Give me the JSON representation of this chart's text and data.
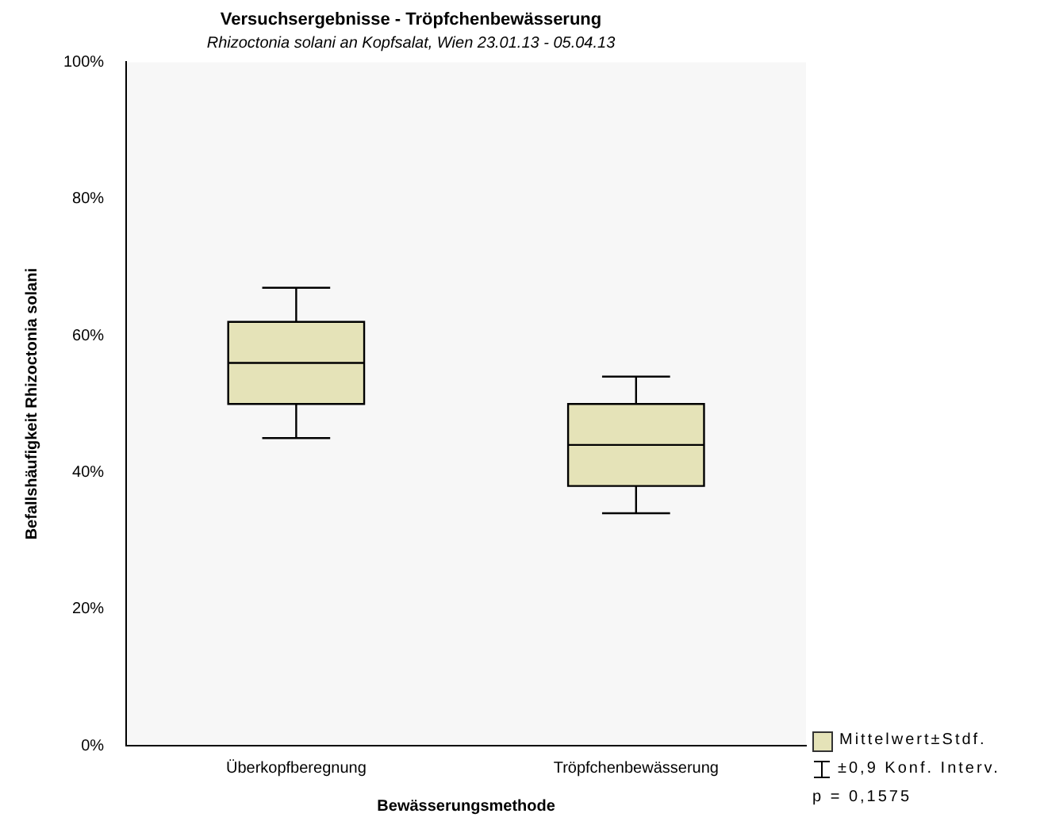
{
  "chart_data": {
    "type": "box",
    "title": "Versuchsergebnisse - Tröpfchenbewässerung",
    "subtitle": "Rhizoctonia solani an Kopfsalat, Wien 23.01.13 - 05.04.13",
    "xlabel": "Bewässerungsmethode",
    "ylabel": "Befallshäufigkeit Rhizoctonia solani",
    "categories": [
      "Überkopfberegnung",
      "Tröpfchenbewässerung"
    ],
    "series": [
      {
        "name": "Mittelwert±Stdf.",
        "color": "#e5e3b8",
        "boxes": [
          {
            "low": 45,
            "q1": 50,
            "median": 56,
            "q3": 62,
            "high": 67
          },
          {
            "low": 34,
            "q1": 38,
            "median": 44,
            "q3": 50,
            "high": 54
          }
        ]
      }
    ],
    "ylim": [
      0,
      100
    ],
    "yticks": [
      {
        "value": 0,
        "label": "0%"
      },
      {
        "value": 20,
        "label": "20%"
      },
      {
        "value": 40,
        "label": "40%"
      },
      {
        "value": 60,
        "label": "60%"
      },
      {
        "value": 80,
        "label": "80%"
      },
      {
        "value": 100,
        "label": "100%"
      }
    ],
    "grid": false,
    "legend": "bottom right",
    "annotations": [
      "±0,9 Konf. Interv.",
      "p = 0,1575"
    ]
  }
}
